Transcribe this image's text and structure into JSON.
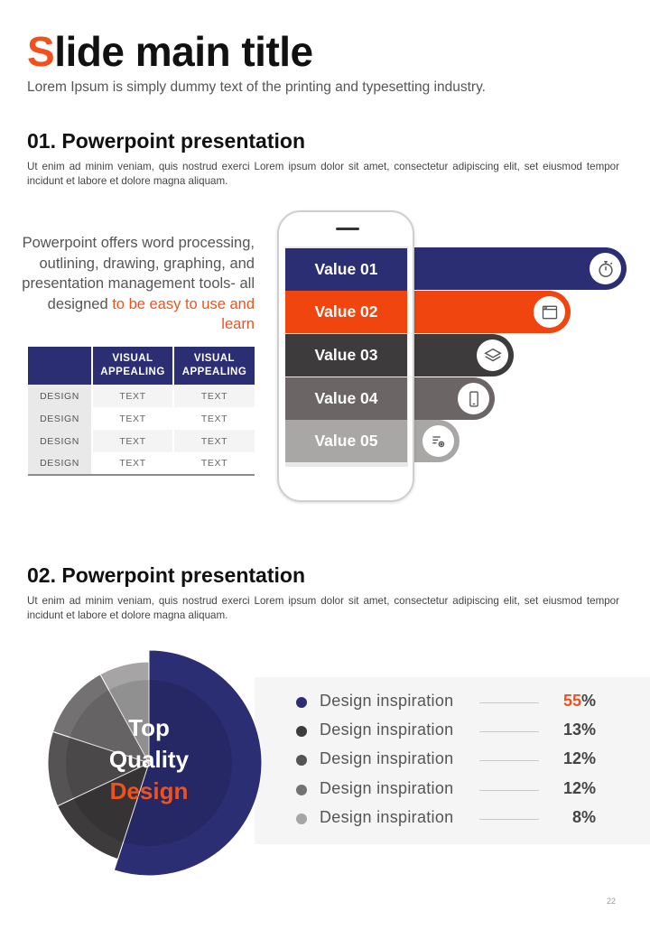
{
  "title": {
    "first_letter": "S",
    "rest": "lide main title"
  },
  "subtitle": "Lorem Ipsum is simply dummy text of the printing and typesetting industry.",
  "section1": {
    "heading": "01. Powerpoint presentation",
    "body": "Ut enim ad minim veniam, quis nostrud exerci  Lorem ipsum dolor sit amet, consectetur adipiscing elit, set eiusmod tempor incidunt et labore et dolore magna aliquam."
  },
  "intro": {
    "normal": "Powerpoint offers word processing, outlining, drawing, graphing, and presentation management tools- all designed",
    "highlight": "to be easy to use and learn"
  },
  "table": {
    "headers": [
      "",
      "VISUAL APPEALING",
      "VISUAL APPEALING"
    ],
    "rows": [
      [
        "DESIGN",
        "TEXT",
        "TEXT"
      ],
      [
        "DESIGN",
        "TEXT",
        "TEXT"
      ],
      [
        "DESIGN",
        "TEXT",
        "TEXT"
      ],
      [
        "DESIGN",
        "TEXT",
        "TEXT"
      ]
    ]
  },
  "values": [
    {
      "label": "Value 01",
      "icon": "stopwatch-icon",
      "color": "#2b2e72"
    },
    {
      "label": "Value 02",
      "icon": "browser-window-icon",
      "color": "#f0450f"
    },
    {
      "label": "Value 03",
      "icon": "layers-icon",
      "color": "#3d3b3b"
    },
    {
      "label": "Value 04",
      "icon": "smartphone-icon",
      "color": "#6b6566"
    },
    {
      "label": "Value 05",
      "icon": "settings-list-icon",
      "color": "#a9a6a6"
    }
  ],
  "section2": {
    "heading": "02. Powerpoint presentation",
    "body": "Ut enim ad minim veniam, quis nostrud exerci  Lorem ipsum dolor sit amet, consectetur adipiscing elit, set eiusmod tempor incidunt et labore et dolore magna aliquam."
  },
  "pie_label": {
    "line1": "Top",
    "line2": "Quality",
    "line3": "Design"
  },
  "chart_data": {
    "type": "pie",
    "title": "Top Quality Design",
    "categories": [
      "Design inspiration",
      "Design inspiration",
      "Design inspiration",
      "Design inspiration",
      "Design inspiration"
    ],
    "values": [
      55,
      13,
      12,
      12,
      8
    ],
    "value_labels": [
      "55%",
      "13%",
      "12%",
      "12%",
      "8%"
    ],
    "colors": [
      "#2b2e72",
      "#3d3b3b",
      "#555353",
      "#737171",
      "#a6a4a4"
    ]
  },
  "legend": [
    {
      "label": "Design inspiration",
      "num": "55",
      "unit": "%",
      "color": "#2b2e72"
    },
    {
      "label": "Design inspiration",
      "num": "13",
      "unit": "%",
      "color": "#3d3b3b"
    },
    {
      "label": "Design inspiration",
      "num": "12",
      "unit": "%",
      "color": "#555353"
    },
    {
      "label": "Design inspiration",
      "num": "12",
      "unit": "%",
      "color": "#737171"
    },
    {
      "label": "Design inspiration",
      "num": "8",
      "unit": "%",
      "color": "#a6a4a4"
    }
  ],
  "page_number": "22"
}
